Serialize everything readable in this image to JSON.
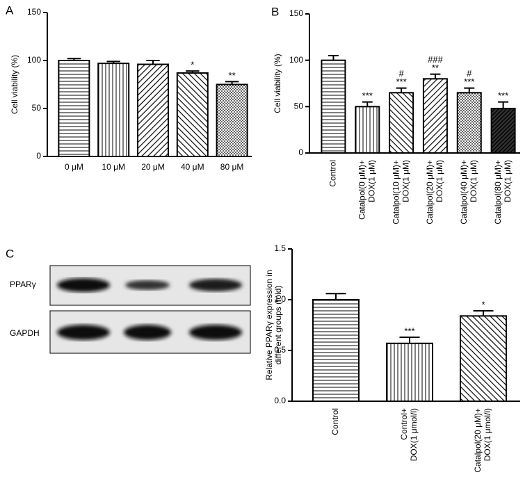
{
  "chart_data": [
    {
      "type": "bar",
      "panel": "A",
      "ylabel": [
        "Cell viability (%)"
      ],
      "categories": [
        "0 μM",
        "10 μM",
        "20 μM",
        "40 μM",
        "80 μM"
      ],
      "values": [
        100,
        97,
        96,
        87,
        75
      ],
      "errors": [
        2,
        2,
        4,
        2,
        3
      ],
      "annotations": [
        null,
        null,
        null,
        [
          "*"
        ],
        [
          "**"
        ]
      ],
      "ylim": [
        0,
        150
      ],
      "yticks": [
        0,
        50,
        100,
        150
      ],
      "color": "#000000"
    },
    {
      "type": "bar",
      "panel": "B",
      "ylabel": [
        "Cell viability (%)"
      ],
      "categories": [
        [
          "Control"
        ],
        [
          "Catalpol(0 μM)+",
          "DOX(1 μM)"
        ],
        [
          "Catalpol(10 μM)+",
          "DOX(1 μM)"
        ],
        [
          "Catalpol(20 μM)+",
          "DOX(1 μM)"
        ],
        [
          "Catalpol(40 μM)+",
          "DOX(1 μM)"
        ],
        [
          "Catalpol(80 μM)+",
          "DOX(1 μM)"
        ]
      ],
      "values": [
        100,
        50,
        65,
        80,
        65,
        48
      ],
      "errors": [
        5,
        5,
        5,
        5,
        5,
        7
      ],
      "annotations": [
        null,
        [
          "***"
        ],
        [
          "#",
          "***"
        ],
        [
          "###",
          "**"
        ],
        [
          "#",
          "***"
        ],
        [
          "***"
        ]
      ],
      "ylim": [
        0,
        150
      ],
      "yticks": [
        0,
        50,
        100,
        150
      ],
      "color": "#000000"
    },
    {
      "type": "bar",
      "ylabel": [
        "Relative PPARγ expression in",
        "different groups (fold)"
      ],
      "categories": [
        [
          "Control"
        ],
        [
          "Control+",
          "DOX(1 μmol/l)"
        ],
        [
          "Catalpol(20 μM)+",
          "DOX(1 μmol/l)"
        ]
      ],
      "values": [
        1.0,
        0.57,
        0.84
      ],
      "errors": [
        0.06,
        0.06,
        0.05
      ],
      "annotations": [
        null,
        [
          "***"
        ],
        [
          "*"
        ]
      ],
      "ylim": [
        0,
        1.5
      ],
      "yticks": [
        {
          "value": 0,
          "label": "0.0"
        },
        0.5,
        {
          "value": 1,
          "label": "1.0"
        },
        1.5
      ],
      "color": "#000000"
    }
  ],
  "blot": {
    "panel": "C",
    "rows": [
      "PPARγ",
      "GAPDH"
    ]
  }
}
